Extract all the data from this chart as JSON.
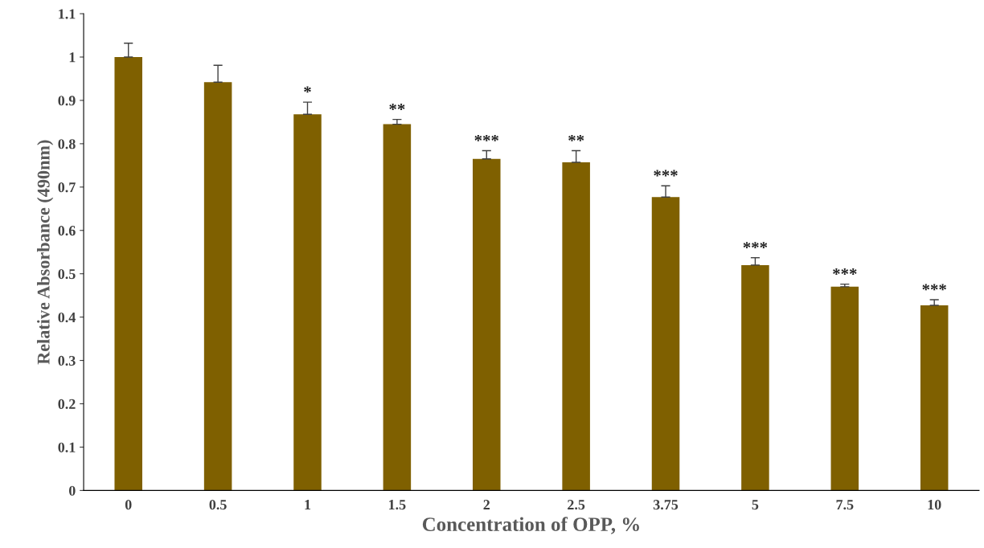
{
  "chart_data": {
    "type": "bar",
    "xlabel": "Concentration of OPP, %",
    "ylabel": "Relative Absorbance (490nm)",
    "categories": [
      "0",
      "0.5",
      "1",
      "1.5",
      "2",
      "2.5",
      "3.75",
      "5",
      "7.5",
      "10"
    ],
    "values": [
      1.0,
      0.942,
      0.868,
      0.845,
      0.765,
      0.757,
      0.677,
      0.52,
      0.47,
      0.427
    ],
    "errors": [
      [
        1.0,
        1.032
      ],
      [
        0.942,
        0.981
      ],
      [
        0.868,
        0.896
      ],
      [
        0.845,
        0.856
      ],
      [
        0.765,
        0.784
      ],
      [
        0.757,
        0.784
      ],
      [
        0.677,
        0.703
      ],
      [
        0.52,
        0.537
      ],
      [
        0.47,
        0.476
      ],
      [
        0.427,
        0.44
      ]
    ],
    "color": "#7f6000",
    "ylim": [
      0,
      1.1
    ],
    "yticks": [
      0,
      0.1,
      0.2,
      0.3,
      0.4,
      0.5,
      0.6,
      0.7,
      0.8,
      0.9,
      1,
      1.1
    ],
    "grid": false,
    "annotations": [
      {
        "text": "*",
        "x": "1",
        "y": 0.896
      },
      {
        "text": "**",
        "x": "1.5",
        "y": 0.856
      },
      {
        "text": "***",
        "x": "2",
        "y": 0.784
      },
      {
        "text": "**",
        "x": "2.5",
        "y": 0.784
      },
      {
        "text": "***",
        "x": "3.75",
        "y": 0.703
      },
      {
        "text": "***",
        "x": "5",
        "y": 0.537
      },
      {
        "text": "***",
        "x": "7.5",
        "y": 0.476
      },
      {
        "text": "***",
        "x": "10",
        "y": 0.44
      }
    ]
  }
}
